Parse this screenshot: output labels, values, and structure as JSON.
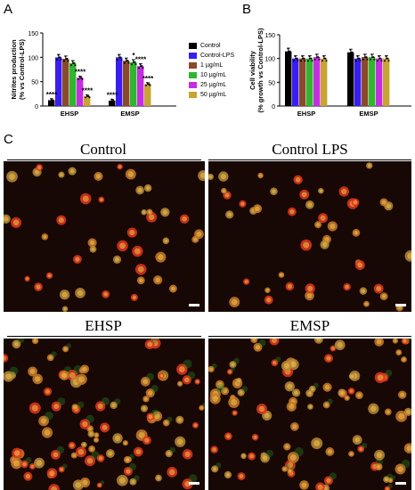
{
  "panels": {
    "a_label": "A",
    "b_label": "B",
    "c_label": "C"
  },
  "colors": {
    "Control": "#000000",
    "Control-LPS": "#3a1ef0",
    "1 µg/mL": "#8a4a2a",
    "10 µg/mL": "#2fb52f",
    "25 µg/mL": "#c52ee0",
    "50 µg/mL": "#c8a432"
  },
  "legend": [
    "Control",
    "Control-LPS",
    "1 µg/mL",
    "10 µg/mL",
    "25 µg/mL",
    "50 µg/mL"
  ],
  "chart_data": [
    {
      "id": "A",
      "type": "bar",
      "ylabel": "Nitrites production\n(% vs Control-LPS)",
      "ylim": [
        0,
        150
      ],
      "yticks": [
        "0",
        "50",
        "100",
        "150"
      ],
      "categories": [
        "EHSP",
        "EMSP"
      ],
      "series": [
        {
          "name": "Control",
          "values": [
            12,
            11
          ]
        },
        {
          "name": "Control-LPS",
          "values": [
            100,
            100
          ]
        },
        {
          "name": "1 µg/mL",
          "values": [
            97,
            93
          ]
        },
        {
          "name": "10 µg/mL",
          "values": [
            88,
            90
          ]
        },
        {
          "name": "25 µg/mL",
          "values": [
            58,
            82
          ]
        },
        {
          "name": "50 µg/mL",
          "values": [
            20,
            45
          ]
        }
      ],
      "annotations": [
        {
          "group": 0,
          "series": 0,
          "text": "****"
        },
        {
          "group": 0,
          "series": 4,
          "text": "****"
        },
        {
          "group": 0,
          "series": 5,
          "text": "****"
        },
        {
          "group": 1,
          "series": 0,
          "text": "****"
        },
        {
          "group": 1,
          "series": 3,
          "text": "*"
        },
        {
          "group": 1,
          "series": 4,
          "text": "****"
        },
        {
          "group": 1,
          "series": 5,
          "text": "****"
        }
      ]
    },
    {
      "id": "B",
      "type": "bar",
      "ylabel": "Cell viability\n(% growth vs Control-LPS)",
      "ylim": [
        0,
        150
      ],
      "yticks": [
        "0",
        "50",
        "100",
        "150"
      ],
      "categories": [
        "EHSP",
        "EMSP"
      ],
      "series": [
        {
          "name": "Control",
          "values": [
            115,
            113
          ]
        },
        {
          "name": "Control-LPS",
          "values": [
            100,
            100
          ]
        },
        {
          "name": "1 µg/mL",
          "values": [
            100,
            103
          ]
        },
        {
          "name": "10 µg/mL",
          "values": [
            100,
            103
          ]
        },
        {
          "name": "25 µg/mL",
          "values": [
            103,
            100
          ]
        },
        {
          "name": "50 µg/mL",
          "values": [
            100,
            100
          ]
        }
      ]
    }
  ],
  "micrographs": [
    {
      "name": "control",
      "title": "Control"
    },
    {
      "name": "control-lps",
      "title": "Control LPS"
    },
    {
      "name": "ehsp",
      "title": "EHSP"
    },
    {
      "name": "emsp",
      "title": "EMSP"
    }
  ]
}
